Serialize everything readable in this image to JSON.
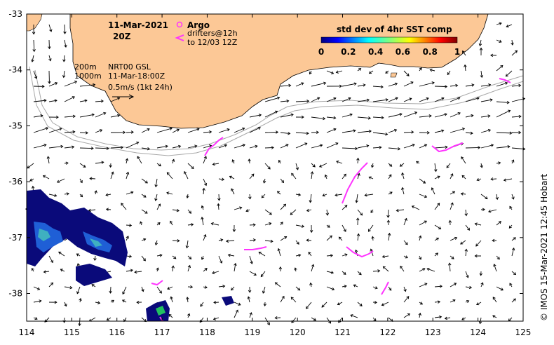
{
  "date_label": "11-Mar-2021",
  "time_label": "20Z",
  "legend": {
    "argo_label": "Argo",
    "drifters_line1": "drifters@12h",
    "drifters_line2": "to 12/03 12Z",
    "argo_color": "#ff33ff"
  },
  "info": {
    "isobath_200": "200m",
    "isobath_1000": "1000m",
    "product": "NRT00 GSL",
    "product_time": "11-Mar-18:00Z",
    "scale_text": "0.5m/s (1kt 24h)"
  },
  "colorbar": {
    "title": "std dev of 4hr SST comp",
    "ticks": [
      "0",
      "0.2",
      "0.4",
      "0.6",
      "0.8",
      "1"
    ]
  },
  "credit": "© IMOS 15-Mar-2021 12:45 Hobart",
  "axes": {
    "x_ticks": [
      "114",
      "115",
      "116",
      "117",
      "118",
      "119",
      "120",
      "121",
      "122",
      "123",
      "124",
      "125"
    ],
    "y_ticks": [
      "-33",
      "-34",
      "-35",
      "-36",
      "-37",
      "-38"
    ]
  },
  "colors": {
    "land": "#fcc896",
    "sst_deep": "#0a0a7a",
    "sst_mid": "#1f5fd6",
    "sst_light": "#3fb0c0",
    "isobath": "#a8a8a8",
    "drifter": "#ff33ff"
  }
}
